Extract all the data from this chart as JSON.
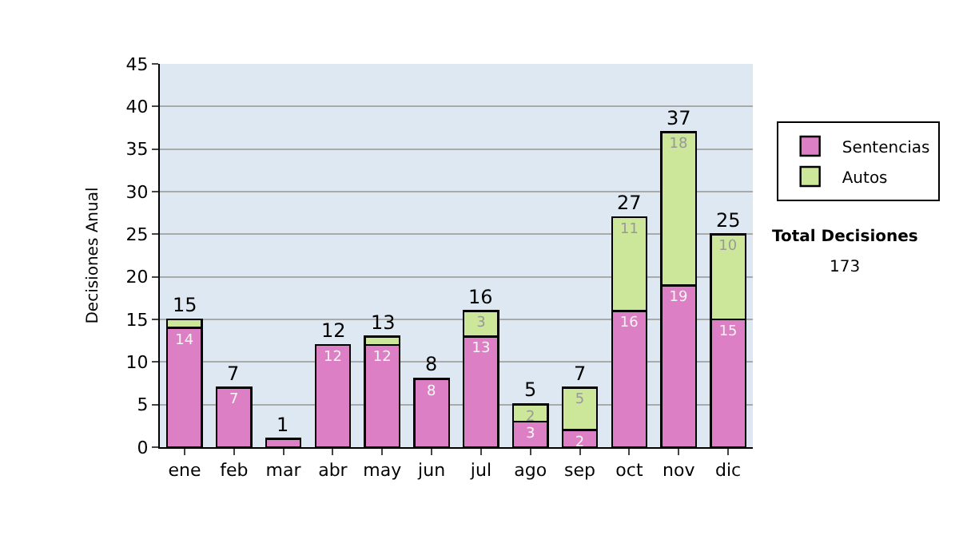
{
  "chart_data": {
    "type": "bar",
    "stacked": true,
    "ylabel": "Decisiones Anual",
    "categories": [
      "ene",
      "feb",
      "mar",
      "abr",
      "may",
      "jun",
      "jul",
      "ago",
      "sep",
      "oct",
      "nov",
      "dic"
    ],
    "series": [
      {
        "name": "Sentencias",
        "color": "#dc7fc4",
        "values": [
          14,
          7,
          1,
          12,
          12,
          8,
          13,
          3,
          2,
          16,
          19,
          15
        ],
        "value_labels": [
          "14",
          "7",
          null,
          "12",
          "12",
          "8",
          "13",
          "3",
          "2",
          "16",
          "19",
          "15"
        ]
      },
      {
        "name": "Autos",
        "color": "#cce69a",
        "values": [
          1,
          null,
          null,
          null,
          1,
          null,
          3,
          2,
          5,
          11,
          18,
          10
        ],
        "value_labels": [
          null,
          null,
          null,
          null,
          null,
          null,
          "3",
          "2",
          "5",
          "11",
          "18",
          "10"
        ]
      }
    ],
    "totals": [
      "15",
      "7",
      "1",
      "12",
      "13",
      "8",
      "16",
      "5",
      "7",
      "27",
      "37",
      "25"
    ],
    "ylim": [
      0,
      45
    ],
    "yticks": [
      0,
      5,
      10,
      15,
      20,
      25,
      30,
      35,
      40,
      45
    ],
    "grid": "y",
    "legend": "right",
    "annotations": [
      "Total Decisiones",
      "173"
    ]
  }
}
